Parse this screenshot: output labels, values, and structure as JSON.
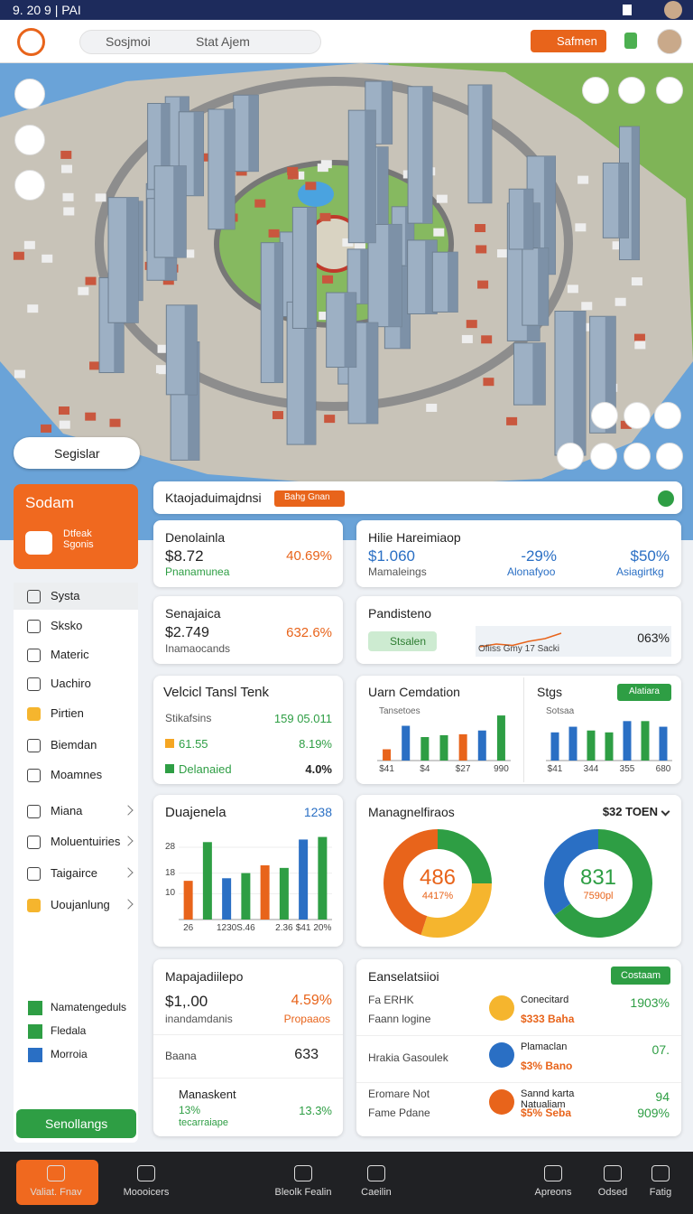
{
  "status_bar": {
    "time": "9. 20  9 | PAI"
  },
  "header": {
    "search": "Sosjmoi",
    "search_hint": "Stat Ajem",
    "button": "Safmen"
  },
  "map": {
    "location": "Segislar"
  },
  "sidebar": {
    "feature_title": "Sodam",
    "feature_subtitle": "Dtfeak Sgonis",
    "menu": [
      "Systa",
      "Sksko",
      "Materic",
      "Uachiro",
      "Pirtien",
      "Biemdan",
      "Moamnes",
      "Miana",
      "Moluentuiries",
      "Taigairce",
      "Uoujanlung"
    ],
    "legend": [
      "Namatengeduls",
      "Fledala",
      "Morroia"
    ],
    "button": "Senollangs"
  },
  "summary": {
    "title": "Ktaojaduimajdnsi",
    "badge": "Bahg Gnan"
  },
  "kpi": [
    {
      "title": "Denolainla",
      "value": "$8.72",
      "change": "40.69%",
      "label": "Pnanamunea"
    },
    {
      "title": "Hilie Hareimiaop",
      "value": "$1.060",
      "change": "-29%",
      "share": "$50%",
      "labels": [
        "Mamaleings",
        "Alonafyoo",
        "Asiagirtkg"
      ]
    },
    {
      "title": "Senajaica",
      "value": "$2.749",
      "change": "632.6%",
      "label": "Inamaocands"
    },
    {
      "title": "Pandisteno",
      "button": "Stsalen",
      "value": "063%",
      "chart_label": "Ofiiss Gmy 17 Sacki",
      "line": {
        "type": "line",
        "values": [
          3,
          4,
          3.5,
          5,
          6,
          8
        ],
        "ylim": [
          0,
          10
        ],
        "color": "#e8641b"
      }
    }
  ],
  "vehicle": {
    "title": "Velcicl Tansl Tenk",
    "rows": [
      [
        "Stikafsins",
        "159 05.011"
      ],
      [
        "61.55",
        "8.19%"
      ],
      [
        "Delanaied",
        "4.0%"
      ]
    ]
  },
  "uarn": {
    "title": "Uarn Cemdation",
    "subtitle": "Tansetoes",
    "chart": {
      "type": "bar",
      "categories": [
        "$41",
        null,
        "$4",
        null,
        "$27",
        null,
        "990"
      ],
      "values": [
        12,
        37,
        25,
        27,
        28,
        32,
        48
      ],
      "colors": [
        "#e8641b",
        "#2a6fc4",
        "#2e9e44",
        "#2e9e44",
        "#e8641b",
        "#2a6fc4",
        "#2e9e44"
      ],
      "ylim": [
        0,
        50
      ]
    }
  },
  "stgs": {
    "title": "Stgs",
    "button": "Alatiara",
    "subtitle": "Sotsaa",
    "chart": {
      "type": "bar",
      "categories": [
        "$41",
        null,
        "344",
        null,
        "355",
        null,
        "680"
      ],
      "values": [
        30,
        36,
        32,
        30,
        42,
        42,
        36
      ],
      "colors": [
        "#2a6fc4",
        "#2a6fc4",
        "#2e9e44",
        "#2e9e44",
        "#2a6fc4",
        "#2e9e44",
        "#2a6fc4"
      ],
      "ylim": [
        0,
        50
      ]
    }
  },
  "duajenela": {
    "title": "Duajenela",
    "value": "1238",
    "chart": {
      "type": "bar",
      "categories": [
        "26",
        null,
        "1230",
        "S.46",
        null,
        "2.36",
        "$41",
        "20%"
      ],
      "values": [
        15,
        30,
        16,
        18,
        21,
        20,
        31,
        32
      ],
      "colors": [
        "#e8641b",
        "#2e9e44",
        "#2a6fc4",
        "#2e9e44",
        "#e8641b",
        "#2e9e44",
        "#2a6fc4",
        "#2e9e44"
      ],
      "ylim": [
        0,
        35
      ],
      "yticks": [
        10,
        18,
        28
      ]
    }
  },
  "managnel": {
    "title": "Managnelfiraos",
    "value": "$32 TOEN",
    "donuts": [
      {
        "type": "pie",
        "center": "486",
        "sub": "4417%",
        "values": [
          25,
          30,
          45
        ],
        "colors": [
          "#2e9e44",
          "#f5b52e",
          "#e8641b"
        ]
      },
      {
        "type": "pie",
        "center": "831",
        "sub": "7590pl",
        "values": [
          65,
          35
        ],
        "colors": [
          "#2e9e44",
          "#2a6fc4"
        ]
      }
    ]
  },
  "mapaj": {
    "title": "Mapajadiilepo",
    "value": "$1,.00",
    "change": "4.59%",
    "label": "inandamdanis",
    "status": "Propaaos",
    "row2": [
      "Baana",
      "633"
    ],
    "row3": {
      "title": "Manaskent",
      "value": "13%",
      "change": "13.3%",
      "label": "tecarraiape"
    }
  },
  "ensel": {
    "title": "Eanselatsiioi",
    "button": "Costaam",
    "rows": [
      {
        "left": "Fa ERHK",
        "left_sub": "Faann logine",
        "name": "Conecitard",
        "sub": "$333 Baha",
        "value": "1903%"
      },
      {
        "left": "Hrakia Gasoulek",
        "name": "Plamaclan",
        "sub": "$3% Bano",
        "value": "07."
      },
      {
        "left": "Eromare Not",
        "left_sub": "Fame Pdane",
        "name": "Sannd karta Natualiam",
        "sub": "$5% Seba",
        "value": "94",
        "value2": "909%"
      }
    ]
  },
  "bottom_nav": [
    "Valiat. Fnav",
    "Moooicers",
    "Bleolk Fealin",
    "Caeilin",
    "Apreons",
    "Odsed",
    "Fatig"
  ]
}
